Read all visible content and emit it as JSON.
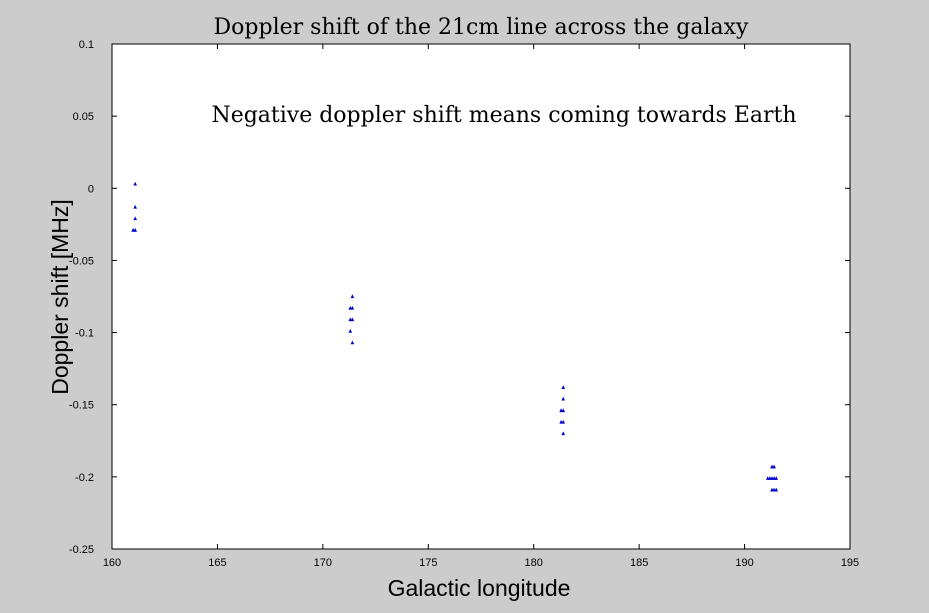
{
  "chart_data": {
    "type": "scatter",
    "title": "Doppler shift of the 21cm line across the galaxy",
    "annotation": "Negative doppler shift means coming towards Earth",
    "xlabel": "Galactic longitude",
    "ylabel": "Doppler shift [MHz]",
    "xlim": [
      160,
      195
    ],
    "ylim": [
      -0.25,
      0.1
    ],
    "xticks": [
      160,
      165,
      170,
      175,
      180,
      185,
      190,
      195
    ],
    "yticks": [
      -0.25,
      -0.2,
      -0.15,
      -0.1,
      -0.05,
      0,
      0.05,
      0.1
    ],
    "xtick_labels": [
      "160",
      "165",
      "170",
      "175",
      "180",
      "185",
      "190",
      "195"
    ],
    "ytick_labels": [
      "-0.25",
      "-0.2",
      "-0.15",
      "-0.1",
      "-0.05",
      "0",
      "0.05",
      "0.1"
    ],
    "grid": false,
    "marker_color": "#0000cc",
    "background_color": "#cccccc",
    "series": [
      {
        "points": [
          {
            "x": 161.1,
            "y": 0.003
          },
          {
            "x": 161.1,
            "y": -0.013
          },
          {
            "x": 161.1,
            "y": -0.021
          },
          {
            "x": 161.0,
            "y": -0.029
          },
          {
            "x": 161.1,
            "y": -0.029
          },
          {
            "x": 171.4,
            "y": -0.075
          },
          {
            "x": 171.3,
            "y": -0.083
          },
          {
            "x": 171.4,
            "y": -0.083
          },
          {
            "x": 171.3,
            "y": -0.091
          },
          {
            "x": 171.4,
            "y": -0.091
          },
          {
            "x": 171.3,
            "y": -0.099
          },
          {
            "x": 171.4,
            "y": -0.107
          },
          {
            "x": 181.4,
            "y": -0.138
          },
          {
            "x": 181.4,
            "y": -0.146
          },
          {
            "x": 181.3,
            "y": -0.154
          },
          {
            "x": 181.4,
            "y": -0.154
          },
          {
            "x": 181.3,
            "y": -0.162
          },
          {
            "x": 181.4,
            "y": -0.162
          },
          {
            "x": 181.4,
            "y": -0.17
          },
          {
            "x": 191.3,
            "y": -0.193
          },
          {
            "x": 191.4,
            "y": -0.193
          },
          {
            "x": 191.1,
            "y": -0.201
          },
          {
            "x": 191.2,
            "y": -0.201
          },
          {
            "x": 191.3,
            "y": -0.201
          },
          {
            "x": 191.4,
            "y": -0.201
          },
          {
            "x": 191.5,
            "y": -0.201
          },
          {
            "x": 191.3,
            "y": -0.209
          },
          {
            "x": 191.4,
            "y": -0.209
          },
          {
            "x": 191.5,
            "y": -0.209
          }
        ]
      }
    ]
  }
}
